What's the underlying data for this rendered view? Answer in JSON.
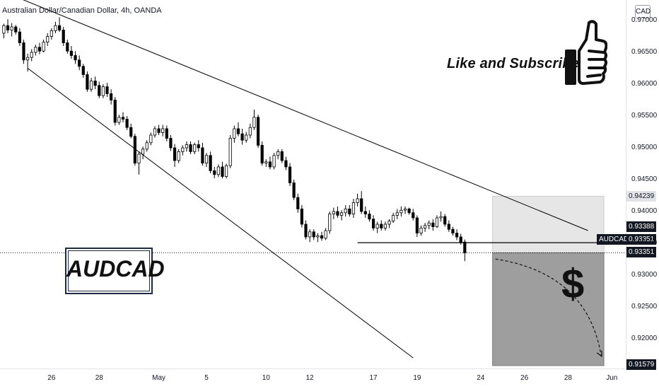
{
  "header": {
    "title": "Australian Dollar/Canadian Dollar, 4h, OANDA",
    "currency_badge": "CAD"
  },
  "annotations": {
    "cta": "Like and Subscribe",
    "symbol_box": "AUDCAD",
    "dollar_sign": "$"
  },
  "price_labels": {
    "target_box_top": "0.94239",
    "upper": "0.93388",
    "symbol_tag": "AUDCAD",
    "current": "0.93351",
    "current_line": "0.93351",
    "bottom": "0.91579"
  },
  "colors": {
    "up_candle": "#ffffff",
    "down_candle": "#000000",
    "wick": "#000000",
    "trendline": "#000000",
    "short_zone": "#9e9e9e",
    "upper_zone": "#e6e6e6",
    "label_dark": "#131722",
    "label_gray": "#e1e3e8"
  },
  "icons": {
    "thumbs_up": "thumbs-up-icon"
  },
  "chart_data": {
    "type": "candlestick",
    "title": "Australian Dollar/Canadian Dollar, 4h, OANDA",
    "xlabel": "",
    "ylabel": "",
    "ylim": [
      0.9146,
      0.9725
    ],
    "grid": false,
    "legend": "none",
    "y_ticks": [
      "0.97000",
      "0.96500",
      "0.96000",
      "0.95500",
      "0.95000",
      "0.94500",
      "0.94000",
      "0.93500",
      "0.93000",
      "0.92500",
      "0.92000"
    ],
    "x_ticks": [
      "26",
      "28",
      "May",
      "5",
      "10",
      "12",
      "17",
      "19",
      "24",
      "26",
      "28",
      "Jun"
    ],
    "x_tick_index": [
      12,
      24,
      39,
      51,
      66,
      77,
      93,
      104,
      120,
      131,
      142,
      153
    ],
    "series": [
      {
        "ohlc": [
          [
            0.968,
            0.9695,
            0.9672,
            0.9692
          ],
          [
            0.9692,
            0.9702,
            0.968,
            0.9685
          ],
          [
            0.9685,
            0.9696,
            0.9675,
            0.969
          ],
          [
            0.969,
            0.9693,
            0.9678,
            0.9682
          ],
          [
            0.9682,
            0.9688,
            0.966,
            0.9665
          ],
          [
            0.9665,
            0.967,
            0.9632,
            0.9638
          ],
          [
            0.9638,
            0.9648,
            0.962,
            0.9642
          ],
          [
            0.9642,
            0.9655,
            0.9636,
            0.965
          ],
          [
            0.965,
            0.9662,
            0.9645,
            0.9658
          ],
          [
            0.9658,
            0.9665,
            0.9647,
            0.9652
          ],
          [
            0.9652,
            0.967,
            0.965,
            0.9666
          ],
          [
            0.9666,
            0.968,
            0.966,
            0.9675
          ],
          [
            0.9675,
            0.9688,
            0.967,
            0.9684
          ],
          [
            0.9684,
            0.9698,
            0.968,
            0.9692
          ],
          [
            0.9692,
            0.9705,
            0.9682,
            0.9685
          ],
          [
            0.9685,
            0.969,
            0.966,
            0.9665
          ],
          [
            0.9665,
            0.967,
            0.9648,
            0.9652
          ],
          [
            0.9652,
            0.966,
            0.964,
            0.9645
          ],
          [
            0.9645,
            0.9652,
            0.9632,
            0.9638
          ],
          [
            0.9638,
            0.9645,
            0.9622,
            0.9628
          ],
          [
            0.9628,
            0.9632,
            0.961,
            0.9615
          ],
          [
            0.9615,
            0.962,
            0.9588,
            0.9592
          ],
          [
            0.9592,
            0.961,
            0.9588,
            0.9605
          ],
          [
            0.9605,
            0.9612,
            0.9592,
            0.9598
          ],
          [
            0.9598,
            0.9604,
            0.9578,
            0.9582
          ],
          [
            0.9582,
            0.96,
            0.9578,
            0.9596
          ],
          [
            0.9596,
            0.9602,
            0.958,
            0.9585
          ],
          [
            0.9585,
            0.9592,
            0.9568,
            0.9575
          ],
          [
            0.9575,
            0.958,
            0.9535,
            0.954
          ],
          [
            0.954,
            0.9552,
            0.9536,
            0.9548
          ],
          [
            0.9548,
            0.9556,
            0.954,
            0.9545
          ],
          [
            0.9545,
            0.955,
            0.9528,
            0.9532
          ],
          [
            0.9532,
            0.9538,
            0.9515,
            0.9518
          ],
          [
            0.9518,
            0.9522,
            0.9472,
            0.9476
          ],
          [
            0.9476,
            0.9494,
            0.9458,
            0.949
          ],
          [
            0.949,
            0.9502,
            0.9482,
            0.9498
          ],
          [
            0.9498,
            0.9512,
            0.9494,
            0.9508
          ],
          [
            0.9508,
            0.9524,
            0.9504,
            0.952
          ],
          [
            0.952,
            0.9534,
            0.9516,
            0.953
          ],
          [
            0.953,
            0.9536,
            0.952,
            0.9524
          ],
          [
            0.9524,
            0.9536,
            0.9518,
            0.953
          ],
          [
            0.953,
            0.9535,
            0.951,
            0.9515
          ],
          [
            0.9515,
            0.952,
            0.9495,
            0.95
          ],
          [
            0.95,
            0.9506,
            0.947,
            0.948
          ],
          [
            0.948,
            0.9498,
            0.9476,
            0.9494
          ],
          [
            0.9494,
            0.9504,
            0.9488,
            0.95
          ],
          [
            0.95,
            0.951,
            0.9494,
            0.9505
          ],
          [
            0.9505,
            0.951,
            0.949,
            0.9494
          ],
          [
            0.9494,
            0.9508,
            0.949,
            0.9505
          ],
          [
            0.9505,
            0.9512,
            0.9494,
            0.95
          ],
          [
            0.95,
            0.9508,
            0.9472,
            0.9476
          ],
          [
            0.9476,
            0.9492,
            0.947,
            0.9488
          ],
          [
            0.9488,
            0.9494,
            0.946,
            0.9464
          ],
          [
            0.9464,
            0.947,
            0.9452,
            0.9458
          ],
          [
            0.9458,
            0.9474,
            0.9454,
            0.947
          ],
          [
            0.947,
            0.9478,
            0.9452,
            0.9455
          ],
          [
            0.9455,
            0.9475,
            0.9452,
            0.9472
          ],
          [
            0.9472,
            0.952,
            0.9468,
            0.9515
          ],
          [
            0.9515,
            0.9535,
            0.9508,
            0.953
          ],
          [
            0.953,
            0.954,
            0.9518,
            0.9522
          ],
          [
            0.9522,
            0.953,
            0.9505,
            0.9512
          ],
          [
            0.9512,
            0.9525,
            0.9508,
            0.952
          ],
          [
            0.952,
            0.9538,
            0.9515,
            0.9532
          ],
          [
            0.9532,
            0.956,
            0.9528,
            0.9548
          ],
          [
            0.9548,
            0.9552,
            0.95,
            0.9504
          ],
          [
            0.9504,
            0.951,
            0.9472,
            0.9476
          ],
          [
            0.9476,
            0.9482,
            0.947,
            0.9478
          ],
          [
            0.9478,
            0.9486,
            0.9466,
            0.947
          ],
          [
            0.947,
            0.9492,
            0.9466,
            0.9488
          ],
          [
            0.9488,
            0.9498,
            0.9482,
            0.9494
          ],
          [
            0.9494,
            0.9498,
            0.9476,
            0.948
          ],
          [
            0.948,
            0.9486,
            0.9465,
            0.947
          ],
          [
            0.947,
            0.9476,
            0.944,
            0.9445
          ],
          [
            0.9445,
            0.945,
            0.9418,
            0.9422
          ],
          [
            0.9422,
            0.9428,
            0.9398,
            0.9404
          ],
          [
            0.9404,
            0.941,
            0.9375,
            0.938
          ],
          [
            0.938,
            0.9386,
            0.9356,
            0.936
          ],
          [
            0.936,
            0.9372,
            0.9352,
            0.9368
          ],
          [
            0.9368,
            0.9372,
            0.9355,
            0.936
          ],
          [
            0.936,
            0.9366,
            0.9352,
            0.9362
          ],
          [
            0.9362,
            0.9368,
            0.9354,
            0.9358
          ],
          [
            0.9358,
            0.9374,
            0.9355,
            0.937
          ],
          [
            0.937,
            0.94,
            0.9365,
            0.9396
          ],
          [
            0.9396,
            0.9406,
            0.9388,
            0.94
          ],
          [
            0.94,
            0.9408,
            0.939,
            0.9394
          ],
          [
            0.9394,
            0.9402,
            0.9386,
            0.9398
          ],
          [
            0.9398,
            0.941,
            0.9392,
            0.9404
          ],
          [
            0.9404,
            0.941,
            0.9392,
            0.9396
          ],
          [
            0.9396,
            0.942,
            0.939,
            0.9414
          ],
          [
            0.9414,
            0.9428,
            0.9408,
            0.942
          ],
          [
            0.942,
            0.9432,
            0.9396,
            0.94
          ],
          [
            0.94,
            0.9408,
            0.939,
            0.9396
          ],
          [
            0.9396,
            0.9402,
            0.9384,
            0.9388
          ],
          [
            0.9388,
            0.9394,
            0.937,
            0.9374
          ],
          [
            0.9374,
            0.9384,
            0.9366,
            0.938
          ],
          [
            0.938,
            0.9386,
            0.937,
            0.9374
          ],
          [
            0.9374,
            0.9384,
            0.937,
            0.938
          ],
          [
            0.938,
            0.9388,
            0.9374,
            0.9385
          ],
          [
            0.9385,
            0.9398,
            0.9382,
            0.9394
          ],
          [
            0.9394,
            0.9404,
            0.9388,
            0.9398
          ],
          [
            0.9398,
            0.9408,
            0.9392,
            0.9402
          ],
          [
            0.9402,
            0.9408,
            0.9396,
            0.9404
          ],
          [
            0.9404,
            0.9406,
            0.9395,
            0.9398
          ],
          [
            0.9398,
            0.9404,
            0.9386,
            0.939
          ],
          [
            0.939,
            0.9394,
            0.936,
            0.9366
          ],
          [
            0.9366,
            0.9378,
            0.9362,
            0.9374
          ],
          [
            0.9374,
            0.9382,
            0.9368,
            0.9378
          ],
          [
            0.9378,
            0.9386,
            0.9372,
            0.9382
          ],
          [
            0.9382,
            0.9388,
            0.937,
            0.9376
          ],
          [
            0.9376,
            0.9394,
            0.9374,
            0.939
          ],
          [
            0.939,
            0.94,
            0.9384,
            0.9392
          ],
          [
            0.9392,
            0.9396,
            0.9376,
            0.938
          ],
          [
            0.938,
            0.9386,
            0.9368,
            0.9372
          ],
          [
            0.9372,
            0.9376,
            0.9362,
            0.9366
          ],
          [
            0.9366,
            0.9372,
            0.9355,
            0.936
          ],
          [
            0.936,
            0.9365,
            0.9348,
            0.9352
          ],
          [
            0.9352,
            0.9356,
            0.9322,
            0.9335
          ]
        ]
      }
    ],
    "trendlines": [
      {
        "name": "",
        "from": [
          0,
          0.9745
        ],
        "to": [
          147,
          0.937
        ]
      },
      {
        "name": "",
        "from": [
          6,
          0.9625
        ],
        "to": [
          103,
          0.917
        ]
      },
      {
        "name": "",
        "from": [
          89,
          0.9351
        ],
        "to": [
          160,
          0.9351
        ]
      }
    ],
    "zones": [
      {
        "from_index": 123,
        "to_index": 151,
        "top": 0.94239,
        "bottom": 0.93351,
        "fill": "#e6e6e6"
      },
      {
        "from_index": 123,
        "to_index": 151,
        "top": 0.93351,
        "bottom": 0.91579,
        "fill": "#9e9e9e"
      }
    ],
    "projection": {
      "style": "dashed",
      "from": [
        123,
        0.9332
      ],
      "to": [
        151,
        0.9168
      ]
    }
  }
}
